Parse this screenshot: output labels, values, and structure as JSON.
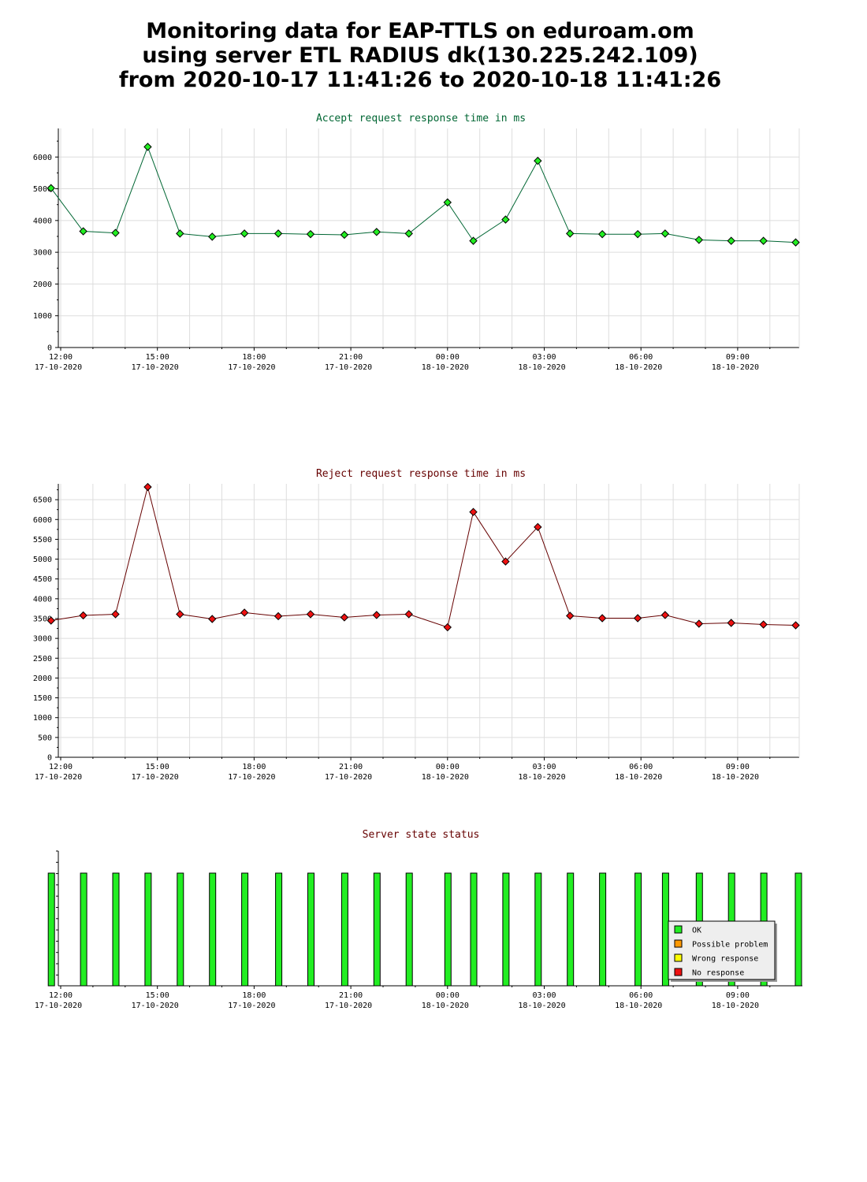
{
  "page": {
    "title_lines": [
      "Monitoring data for EAP-TTLS on eduroam.om",
      "using server ETL RADIUS dk(130.225.242.109)",
      "from 2020-10-17 11:41:26 to 2020-10-18 11:41:26"
    ]
  },
  "colors": {
    "accept_title": "#006633",
    "reject_title": "#660000",
    "status_title": "#660000",
    "accept_marker": "#22ee22",
    "reject_marker": "#ee1111",
    "grid": "#dddddd",
    "line": "#000000"
  },
  "x_ticks": [
    {
      "time": "12:00",
      "date": "17-10-2020"
    },
    {
      "time": "15:00",
      "date": "17-10-2020"
    },
    {
      "time": "18:00",
      "date": "17-10-2020"
    },
    {
      "time": "21:00",
      "date": "17-10-2020"
    },
    {
      "time": "00:00",
      "date": "18-10-2020"
    },
    {
      "time": "03:00",
      "date": "18-10-2020"
    },
    {
      "time": "06:00",
      "date": "18-10-2020"
    },
    {
      "time": "09:00",
      "date": "18-10-2020"
    }
  ],
  "chart_data": [
    {
      "type": "line",
      "title": "Accept request response time in ms",
      "x_unit": "time",
      "x": [
        "17-10-2020 11:41",
        "17-10-2020 12:41",
        "17-10-2020 13:41",
        "17-10-2020 14:41",
        "17-10-2020 15:41",
        "17-10-2020 16:41",
        "17-10-2020 17:41",
        "17-10-2020 18:41",
        "17-10-2020 19:41",
        "17-10-2020 20:41",
        "17-10-2020 21:41",
        "17-10-2020 22:41",
        "18-10-2020 00:00",
        "18-10-2020 00:45",
        "18-10-2020 01:41",
        "18-10-2020 02:41",
        "18-10-2020 03:41",
        "18-10-2020 04:41",
        "18-10-2020 05:47",
        "18-10-2020 06:41",
        "18-10-2020 07:41",
        "18-10-2020 08:41",
        "18-10-2020 09:41",
        "18-10-2020 10:41"
      ],
      "x_hours": [
        -0.3,
        0.7,
        1.7,
        2.7,
        3.7,
        4.7,
        5.7,
        6.75,
        7.75,
        8.8,
        9.8,
        10.8,
        12.0,
        12.8,
        13.8,
        14.8,
        15.8,
        16.8,
        17.9,
        18.75,
        19.8,
        20.8,
        21.8,
        22.8
      ],
      "y": [
        5020,
        3660,
        3610,
        6320,
        3590,
        3490,
        3590,
        3590,
        3570,
        3550,
        3640,
        3590,
        4570,
        3360,
        4030,
        5880,
        3590,
        3570,
        3570,
        3590,
        3390,
        3360,
        3360,
        3310
      ],
      "ylim": [
        0,
        6900
      ],
      "yticks": [
        0,
        1000,
        2000,
        3000,
        4000,
        5000,
        6000
      ],
      "grid": true
    },
    {
      "type": "line",
      "title": "Reject request response time in ms",
      "x_unit": "time",
      "x": [
        "17-10-2020 11:41",
        "17-10-2020 12:41",
        "17-10-2020 13:41",
        "17-10-2020 14:41",
        "17-10-2020 15:41",
        "17-10-2020 16:41",
        "17-10-2020 17:41",
        "17-10-2020 18:41",
        "17-10-2020 19:41",
        "17-10-2020 20:41",
        "17-10-2020 21:41",
        "17-10-2020 22:41",
        "18-10-2020 00:00",
        "18-10-2020 00:45",
        "18-10-2020 01:41",
        "18-10-2020 02:41",
        "18-10-2020 03:41",
        "18-10-2020 04:41",
        "18-10-2020 05:47",
        "18-10-2020 06:41",
        "18-10-2020 07:41",
        "18-10-2020 08:41",
        "18-10-2020 09:41",
        "18-10-2020 10:41"
      ],
      "x_hours": [
        -0.3,
        0.7,
        1.7,
        2.7,
        3.7,
        4.7,
        5.7,
        6.75,
        7.75,
        8.8,
        9.8,
        10.8,
        12.0,
        12.8,
        13.8,
        14.8,
        15.8,
        16.8,
        17.9,
        18.75,
        19.8,
        20.8,
        21.8,
        22.8
      ],
      "y": [
        3450,
        3580,
        3610,
        6820,
        3610,
        3490,
        3650,
        3560,
        3610,
        3530,
        3590,
        3610,
        3280,
        6190,
        4940,
        5810,
        3570,
        3510,
        3510,
        3590,
        3370,
        3390,
        3350,
        3330
      ],
      "ylim": [
        0,
        6900
      ],
      "yticks": [
        0,
        500,
        1000,
        1500,
        2000,
        2500,
        3000,
        3500,
        4000,
        4500,
        5000,
        5500,
        6000,
        6500
      ],
      "grid": true
    },
    {
      "type": "bar",
      "title": "Server state status",
      "x_hours": [
        -0.3,
        0.7,
        1.7,
        2.7,
        3.7,
        4.7,
        5.7,
        6.75,
        7.75,
        8.8,
        9.8,
        10.8,
        12.0,
        12.8,
        13.8,
        14.8,
        15.8,
        16.8,
        17.9,
        18.75,
        19.8,
        20.8,
        21.8,
        22.8
      ],
      "states": [
        "OK",
        "OK",
        "OK",
        "OK",
        "OK",
        "OK",
        "OK",
        "OK",
        "OK",
        "OK",
        "OK",
        "OK",
        "OK",
        "OK",
        "OK",
        "OK",
        "OK",
        "OK",
        "OK",
        "OK",
        "OK",
        "OK",
        "OK",
        "OK"
      ],
      "legend": [
        {
          "label": "OK",
          "color": "#22ee22"
        },
        {
          "label": "Possible problem",
          "color": "#ff9900"
        },
        {
          "label": "Wrong response",
          "color": "#ffff00"
        },
        {
          "label": "No response",
          "color": "#ee1111"
        }
      ],
      "legend_position": "bottom-right"
    }
  ]
}
